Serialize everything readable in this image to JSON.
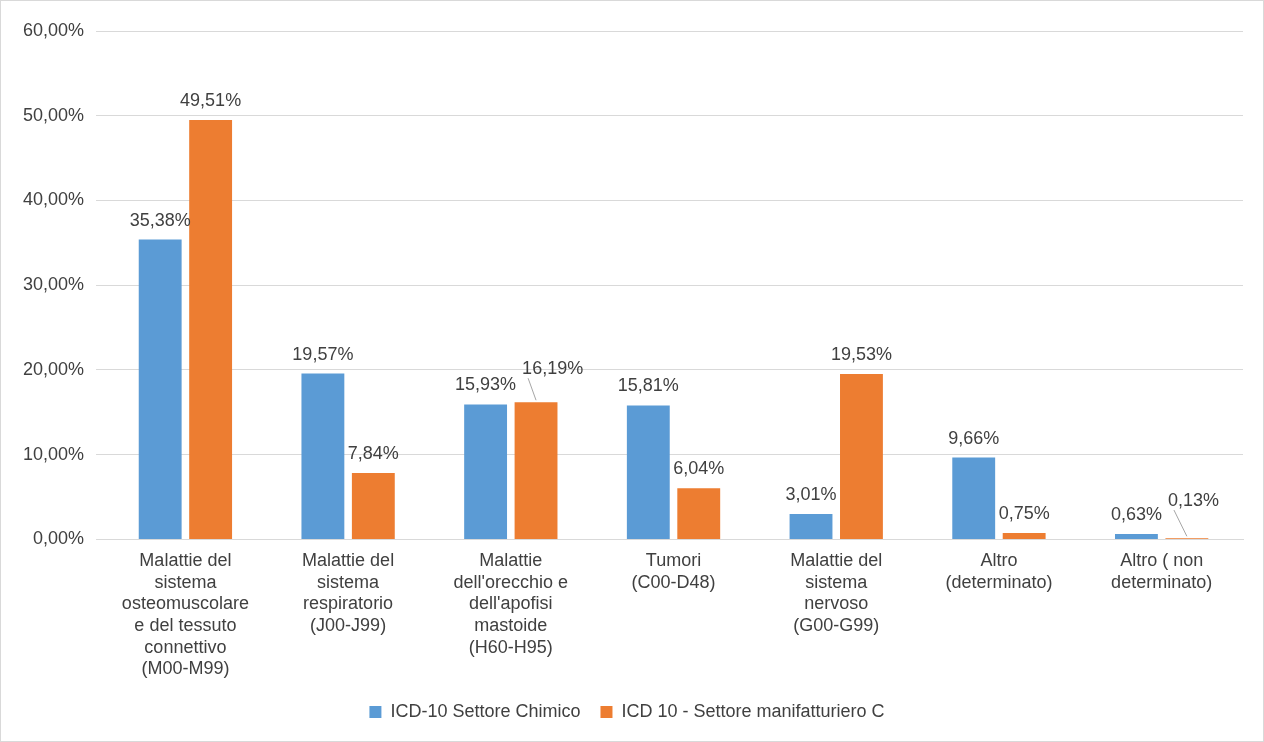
{
  "chart_data": {
    "type": "bar",
    "categories": [
      "Malattie del sistema osteomuscolare e del tessuto connettivo (M00-M99)",
      "Malattie del sistema respiratorio (J00-J99)",
      "Malattie dell'orecchio e dell'apofisi mastoide (H60-H95)",
      "Tumori (C00-D48)",
      "Malattie del sistema nervoso (G00-G99)",
      "Altro (determinato)",
      "Altro ( non determinato)"
    ],
    "series": [
      {
        "name": "ICD-10 Settore Chimico",
        "color": "#5b9bd5",
        "values": [
          35.38,
          19.57,
          15.93,
          15.81,
          3.01,
          9.66,
          0.63
        ],
        "value_labels": [
          "35,38%",
          "19,57%",
          "15,93%",
          "15,81%",
          "3,01%",
          "9,66%",
          "0,63%"
        ]
      },
      {
        "name": "ICD 10 - Settore manifatturiero C",
        "color": "#ed7d31",
        "values": [
          49.51,
          7.84,
          16.19,
          6.04,
          19.53,
          0.75,
          0.13
        ],
        "value_labels": [
          "49,51%",
          "7,84%",
          "16,19%",
          "6,04%",
          "19,53%",
          "0,75%",
          "0,13%"
        ]
      }
    ],
    "ylim": [
      0,
      60
    ],
    "yticks": [
      {
        "value": 0,
        "label": "0,00%"
      },
      {
        "value": 10,
        "label": "10,00%"
      },
      {
        "value": 20,
        "label": "20,00%"
      },
      {
        "value": 30,
        "label": "30,00%"
      },
      {
        "value": 40,
        "label": "40,00%"
      },
      {
        "value": 50,
        "label": "50,00%"
      },
      {
        "value": 60,
        "label": "60,00%"
      }
    ],
    "grid": "y",
    "legend": "bottom"
  }
}
